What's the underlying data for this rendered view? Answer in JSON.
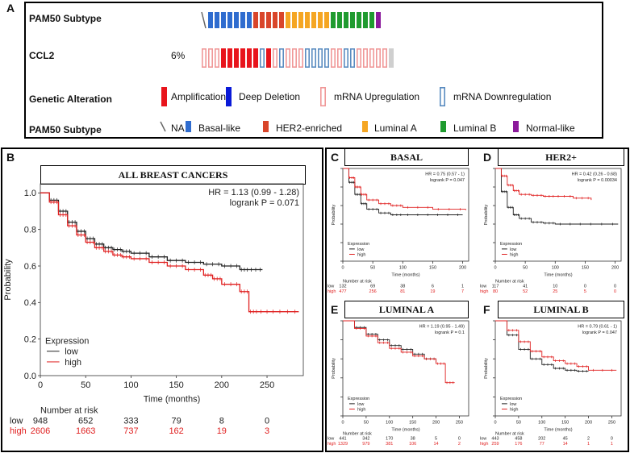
{
  "panelA": {
    "letter": "A",
    "row1_label": "PAM50 Subtype",
    "row2_label": "CCL2",
    "row2_pct": "6%",
    "row3_label": "Genetic Alteration",
    "row4_label": "PAM50 Subtype",
    "pam50_bars": [
      "na",
      "basal",
      "basal",
      "basal",
      "basal",
      "basal",
      "basal",
      "basal",
      "her2",
      "her2",
      "her2",
      "her2",
      "her2",
      "lumA",
      "lumA",
      "lumA",
      "lumA",
      "lumA",
      "lumA",
      "lumA",
      "lumB",
      "lumB",
      "lumB",
      "lumB",
      "lumB",
      "lumB",
      "lumB",
      "norm"
    ],
    "ccl2_bars": [
      "up",
      "up",
      "up",
      "amp",
      "amp",
      "amp",
      "amp",
      "amp",
      "amp",
      "down",
      "amp",
      "up",
      "down",
      "up",
      "up",
      "up",
      "down",
      "down",
      "down",
      "down",
      "up",
      "up",
      "down",
      "down",
      "up",
      "up",
      "up",
      "up",
      "up",
      "grey"
    ],
    "alteration_legend": [
      {
        "key": "amp",
        "label": "Amplification"
      },
      {
        "key": "deep",
        "label": "Deep Deletion"
      },
      {
        "key": "up",
        "label": "mRNA Upregulation"
      },
      {
        "key": "down",
        "label": "mRNA Downregulation"
      }
    ],
    "subtype_legend": [
      {
        "key": "na",
        "label": "NA"
      },
      {
        "key": "basal",
        "label": "Basal-like"
      },
      {
        "key": "her2",
        "label": "HER2-enriched"
      },
      {
        "key": "lumA",
        "label": "Luminal A"
      },
      {
        "key": "lumB",
        "label": "Luminal B"
      },
      {
        "key": "norm",
        "label": "Normal-like"
      }
    ],
    "colors": {
      "amp": "#e8141c",
      "deep": "#0a1ad8",
      "up": "#f09898",
      "down": "#5a8cc0",
      "basal": "#2f6ccf",
      "her2": "#d9452a",
      "lumA": "#f5a623",
      "lumB": "#1f9b2f",
      "norm": "#8b1a9b",
      "na": "#666666",
      "grey": "#cfcfcf"
    }
  },
  "chart_data": [
    {
      "panel": "B",
      "type": "line",
      "title": "ALL BREAST CANCERS",
      "xlabel": "Time (months)",
      "ylabel": "Probability",
      "xlim": [
        0,
        290
      ],
      "ylim": [
        0,
        1.05
      ],
      "xticks": [
        "0",
        "50",
        "100",
        "150",
        "200",
        "250"
      ],
      "yticks": [
        "0.0",
        "0.2",
        "0.4",
        "0.6",
        "0.8",
        "1.0"
      ],
      "stat1": "HR = 1.13 (0.99 - 1.28)",
      "stat2": "logrank P = 0.071",
      "legend_title": "Expression",
      "risk_title": "Number at risk",
      "series": [
        {
          "name": "low",
          "color": "#222222",
          "x": [
            0,
            10,
            20,
            30,
            40,
            50,
            60,
            70,
            80,
            90,
            100,
            120,
            140,
            160,
            180,
            200,
            220,
            230,
            245
          ],
          "y": [
            1.0,
            0.96,
            0.9,
            0.84,
            0.79,
            0.75,
            0.72,
            0.7,
            0.69,
            0.68,
            0.67,
            0.65,
            0.63,
            0.62,
            0.61,
            0.6,
            0.58,
            0.58,
            0.58
          ],
          "risk": [
            "948",
            "652",
            "333",
            "79",
            "8",
            "0"
          ]
        },
        {
          "name": "high",
          "color": "#e02020",
          "x": [
            0,
            10,
            20,
            30,
            40,
            50,
            60,
            70,
            80,
            90,
            100,
            120,
            140,
            160,
            180,
            190,
            200,
            220,
            230,
            240,
            260,
            285
          ],
          "y": [
            1.0,
            0.95,
            0.88,
            0.82,
            0.77,
            0.73,
            0.7,
            0.68,
            0.66,
            0.65,
            0.64,
            0.62,
            0.6,
            0.58,
            0.55,
            0.53,
            0.5,
            0.46,
            0.35,
            0.35,
            0.35,
            0.35
          ],
          "risk": [
            "2606",
            "1663",
            "737",
            "162",
            "19",
            "3"
          ]
        }
      ]
    },
    {
      "panel": "C",
      "type": "line",
      "title": "BASAL",
      "stat1": "HR = 0.75 (0.57 - 1)",
      "stat2": "logrank P = 0.047",
      "xlabel": "Time (months)",
      "ylabel": "Probability",
      "xlim": [
        0,
        210
      ],
      "ylim": [
        0,
        1
      ],
      "xticks": [
        "0",
        "50",
        "100",
        "150",
        "200"
      ],
      "legend_title": "Expression",
      "risk_title": "Number at risk",
      "series": [
        {
          "name": "low",
          "color": "#222222",
          "x": [
            0,
            10,
            20,
            30,
            40,
            60,
            80,
            100,
            150,
            200
          ],
          "y": [
            1.0,
            0.85,
            0.72,
            0.62,
            0.56,
            0.52,
            0.5,
            0.5,
            0.5,
            0.5
          ],
          "risk": [
            "132",
            "69",
            "38",
            "6",
            "1"
          ]
        },
        {
          "name": "high",
          "color": "#e02020",
          "x": [
            0,
            10,
            20,
            30,
            40,
            60,
            80,
            100,
            150,
            205
          ],
          "y": [
            1.0,
            0.9,
            0.8,
            0.72,
            0.66,
            0.62,
            0.6,
            0.58,
            0.56,
            0.55
          ],
          "risk": [
            "477",
            "256",
            "81",
            "19",
            "7"
          ]
        }
      ]
    },
    {
      "panel": "D",
      "type": "line",
      "title": "HER2+",
      "stat1": "HR = 0.42 (0.26 - 0.68)",
      "stat2": "logrank P = 0.00034",
      "xlabel": "Time (months)",
      "ylabel": "Probability",
      "xlim": [
        0,
        210
      ],
      "ylim": [
        0,
        1
      ],
      "xticks": [
        "0",
        "50",
        "100",
        "150",
        "200"
      ],
      "legend_title": "Expression",
      "risk_title": "Number at risk",
      "series": [
        {
          "name": "low",
          "color": "#222222",
          "x": [
            0,
            10,
            20,
            30,
            40,
            60,
            80,
            100,
            150,
            205
          ],
          "y": [
            1.0,
            0.75,
            0.58,
            0.5,
            0.46,
            0.42,
            0.41,
            0.4,
            0.4,
            0.4
          ],
          "risk": [
            "117",
            "41",
            "10",
            "0",
            "0"
          ]
        },
        {
          "name": "high",
          "color": "#e02020",
          "x": [
            0,
            10,
            20,
            30,
            40,
            60,
            80,
            100,
            130,
            160
          ],
          "y": [
            1.0,
            0.92,
            0.82,
            0.76,
            0.72,
            0.71,
            0.7,
            0.7,
            0.68,
            0.66
          ],
          "risk": [
            "80",
            "52",
            "25",
            "5",
            "0"
          ]
        }
      ]
    },
    {
      "panel": "E",
      "type": "line",
      "title": "LUMINAL A",
      "stat1": "HR = 1.19 (0.95 - 1.49)",
      "stat2": "logrank P = 0.1",
      "xlabel": "Time (months)",
      "ylabel": "Probability",
      "xlim": [
        0,
        270
      ],
      "ylim": [
        0,
        1
      ],
      "xticks": [
        "0",
        "50",
        "100",
        "150",
        "200",
        "250"
      ],
      "legend_title": "Expression",
      "risk_title": "Number at risk",
      "series": [
        {
          "name": "low",
          "color": "#222222",
          "x": [
            0,
            25,
            50,
            75,
            100,
            125,
            150,
            175,
            200
          ],
          "y": [
            1.0,
            0.93,
            0.86,
            0.8,
            0.74,
            0.7,
            0.65,
            0.6,
            0.56
          ],
          "risk": [
            "441",
            "342",
            "170",
            "38",
            "5",
            "0"
          ]
        },
        {
          "name": "high",
          "color": "#e02020",
          "x": [
            0,
            25,
            50,
            75,
            100,
            125,
            150,
            175,
            200,
            220,
            240
          ],
          "y": [
            1.0,
            0.92,
            0.84,
            0.77,
            0.71,
            0.67,
            0.63,
            0.6,
            0.55,
            0.35,
            0.35
          ],
          "risk": [
            "1329",
            "979",
            "381",
            "106",
            "14",
            "2"
          ]
        }
      ]
    },
    {
      "panel": "F",
      "type": "line",
      "title": "LUMINAL B",
      "stat1": "HR = 0.79 (0.61 - 1)",
      "stat2": "logrank P = 0.047",
      "xlabel": "Time (months)",
      "ylabel": "Probability",
      "xlim": [
        0,
        270
      ],
      "ylim": [
        0,
        1
      ],
      "xticks": [
        "0",
        "50",
        "100",
        "150",
        "200",
        "250"
      ],
      "legend_title": "Expression",
      "risk_title": "Number at risk",
      "series": [
        {
          "name": "low",
          "color": "#222222",
          "x": [
            0,
            25,
            50,
            75,
            100,
            125,
            150,
            175,
            200
          ],
          "y": [
            1.0,
            0.85,
            0.7,
            0.6,
            0.54,
            0.5,
            0.48,
            0.47,
            0.47
          ],
          "risk": [
            "443",
            "458",
            "202",
            "45",
            "2",
            "0"
          ]
        },
        {
          "name": "high",
          "color": "#e02020",
          "x": [
            0,
            25,
            50,
            75,
            100,
            125,
            150,
            175,
            200,
            260
          ],
          "y": [
            1.0,
            0.9,
            0.78,
            0.68,
            0.62,
            0.58,
            0.55,
            0.52,
            0.48,
            0.48
          ],
          "risk": [
            "259",
            "176",
            "77",
            "14",
            "1",
            "1"
          ]
        }
      ]
    }
  ]
}
